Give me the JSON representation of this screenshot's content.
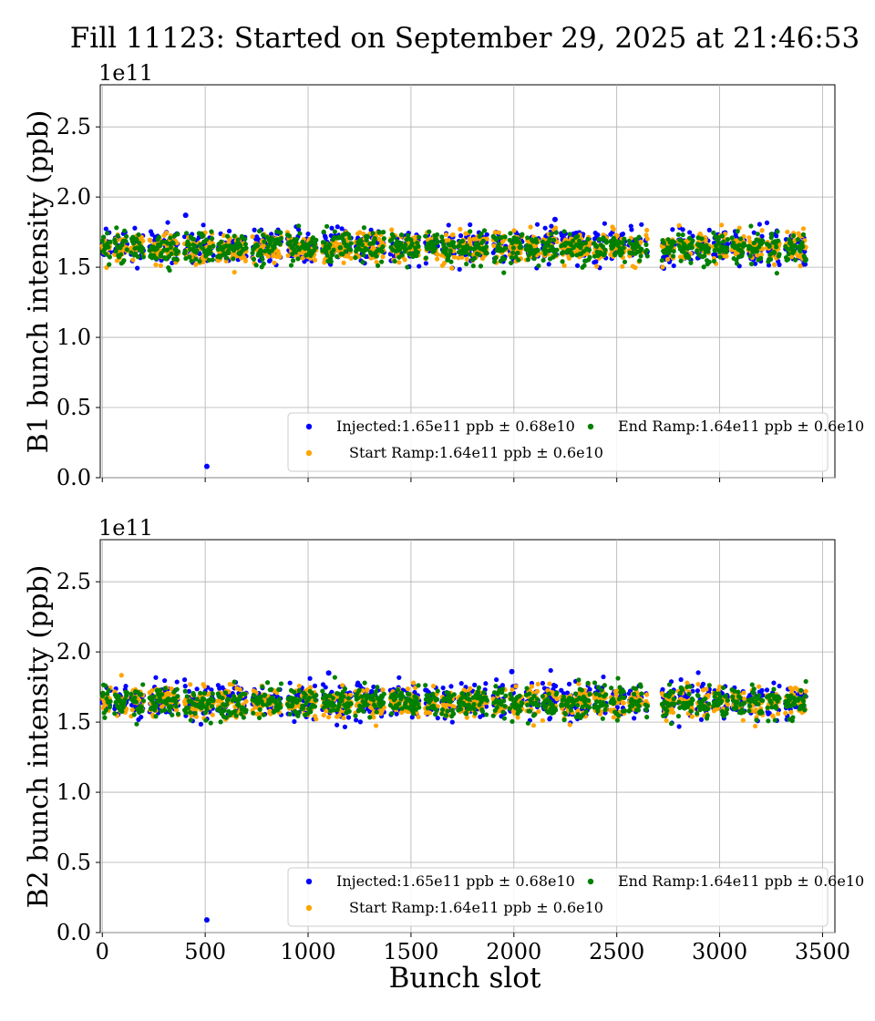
{
  "chart_data": {
    "title": "Fill 11123: Started on September 29, 2025 at 21:46:53",
    "xlabel": "Bunch slot",
    "panels": [
      {
        "type": "scatter",
        "ylabel": "B1 bunch intensity (ppb)",
        "exponent_label": "1e11",
        "xlim": [
          -10,
          3560
        ],
        "ylim": [
          0,
          2.8
        ],
        "xticks": [
          0,
          500,
          1000,
          1500,
          2000,
          2500,
          3000,
          3500
        ],
        "yticks": [
          0.0,
          0.5,
          1.0,
          1.5,
          2.0,
          2.5
        ],
        "grid": true,
        "legend_position": "lower-right",
        "series": [
          {
            "name": "Injected:1.65e11 ppb ± 0.68e10",
            "color": "#0000ff",
            "mean": 1.65,
            "std": 0.068,
            "outliers": [
              [
                508,
                0.08
              ],
              [
                405,
                1.87
              ],
              [
                2200,
                1.84
              ]
            ]
          },
          {
            "name": "Start Ramp:1.64e11 ppb ± 0.6e10",
            "color": "#ffa500",
            "mean": 1.64,
            "std": 0.06
          },
          {
            "name": "End Ramp:1.64e11 ppb ± 0.6e10",
            "color": "#008000",
            "mean": 1.64,
            "std": 0.06
          }
        ]
      },
      {
        "type": "scatter",
        "ylabel": "B2 bunch intensity (ppb)",
        "exponent_label": "1e11",
        "xlim": [
          -10,
          3560
        ],
        "ylim": [
          0,
          2.8
        ],
        "xticks": [
          0,
          500,
          1000,
          1500,
          2000,
          2500,
          3000,
          3500
        ],
        "yticks": [
          0.0,
          0.5,
          1.0,
          1.5,
          2.0,
          2.5
        ],
        "grid": true,
        "legend_position": "lower-right",
        "series": [
          {
            "name": "Injected:1.65e11 ppb ± 0.68e10",
            "color": "#0000ff",
            "mean": 1.65,
            "std": 0.068,
            "outliers": [
              [
                508,
                0.09
              ],
              [
                1990,
                1.86
              ],
              [
                1100,
                1.85
              ]
            ]
          },
          {
            "name": "Start Ramp:1.64e11 ppb ± 0.6e10",
            "color": "#ffa500",
            "mean": 1.64,
            "std": 0.06
          },
          {
            "name": "End Ramp:1.64e11 ppb ± 0.6e10",
            "color": "#008000",
            "mean": 1.64,
            "std": 0.06
          }
        ]
      }
    ],
    "train_segments": [
      [
        0,
        40
      ],
      [
        60,
        120
      ],
      [
        140,
        200
      ],
      [
        230,
        290
      ],
      [
        300,
        370
      ],
      [
        400,
        460
      ],
      [
        470,
        540
      ],
      [
        560,
        620
      ],
      [
        630,
        700
      ],
      [
        730,
        790
      ],
      [
        800,
        870
      ],
      [
        900,
        960
      ],
      [
        970,
        1040
      ],
      [
        1070,
        1130
      ],
      [
        1140,
        1210
      ],
      [
        1230,
        1290
      ],
      [
        1300,
        1370
      ],
      [
        1400,
        1460
      ],
      [
        1470,
        1540
      ],
      [
        1570,
        1630
      ],
      [
        1650,
        1710
      ],
      [
        1730,
        1790
      ],
      [
        1800,
        1870
      ],
      [
        1900,
        1960
      ],
      [
        1980,
        2040
      ],
      [
        2060,
        2120
      ],
      [
        2140,
        2210
      ],
      [
        2230,
        2290
      ],
      [
        2300,
        2370
      ],
      [
        2390,
        2450
      ],
      [
        2470,
        2540
      ],
      [
        2560,
        2620
      ],
      [
        2640,
        2650
      ],
      [
        2720,
        2780
      ],
      [
        2800,
        2870
      ],
      [
        2890,
        2950
      ],
      [
        2970,
        3040
      ],
      [
        3060,
        3120
      ],
      [
        3140,
        3210
      ],
      [
        3230,
        3290
      ],
      [
        3320,
        3370
      ],
      [
        3380,
        3420
      ]
    ]
  }
}
